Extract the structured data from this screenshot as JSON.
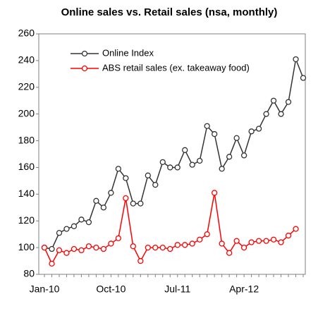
{
  "chart_data": {
    "type": "line",
    "title": "Online sales vs. Retail sales (nsa, monthly)",
    "categories": [
      "Jan-10",
      null,
      null,
      null,
      null,
      null,
      null,
      null,
      null,
      "Oct-10",
      null,
      null,
      null,
      null,
      null,
      null,
      null,
      null,
      "Jul-11",
      null,
      null,
      null,
      null,
      null,
      null,
      null,
      null,
      "Apr-12",
      null,
      null,
      null,
      null,
      null,
      null,
      null,
      null
    ],
    "series": [
      {
        "name": "Online Index",
        "color": "#333333",
        "values": [
          100,
          99,
          111,
          114,
          116,
          121,
          119,
          135,
          130,
          141,
          159,
          152,
          133,
          133,
          154,
          147,
          164,
          160,
          160,
          173,
          162,
          165,
          191,
          185,
          159,
          168,
          182,
          169,
          187,
          189,
          200,
          210,
          200,
          209,
          241,
          227
        ]
      },
      {
        "name": "ABS retail sales (ex. takeaway food)",
        "color": "#ff0000",
        "values": [
          100,
          88,
          98,
          96,
          99,
          98,
          101,
          100,
          99,
          103,
          107,
          137,
          101,
          90,
          100,
          100,
          100,
          99,
          102,
          102,
          103,
          106,
          110,
          141,
          103,
          96,
          105,
          100,
          104,
          105,
          105,
          106,
          104,
          109,
          114,
          null
        ]
      }
    ],
    "ylim": [
      80,
      260
    ],
    "yticks": [
      80,
      100,
      120,
      140,
      160,
      180,
      200,
      220,
      240,
      260
    ],
    "grid": false,
    "legend": "top-left"
  }
}
